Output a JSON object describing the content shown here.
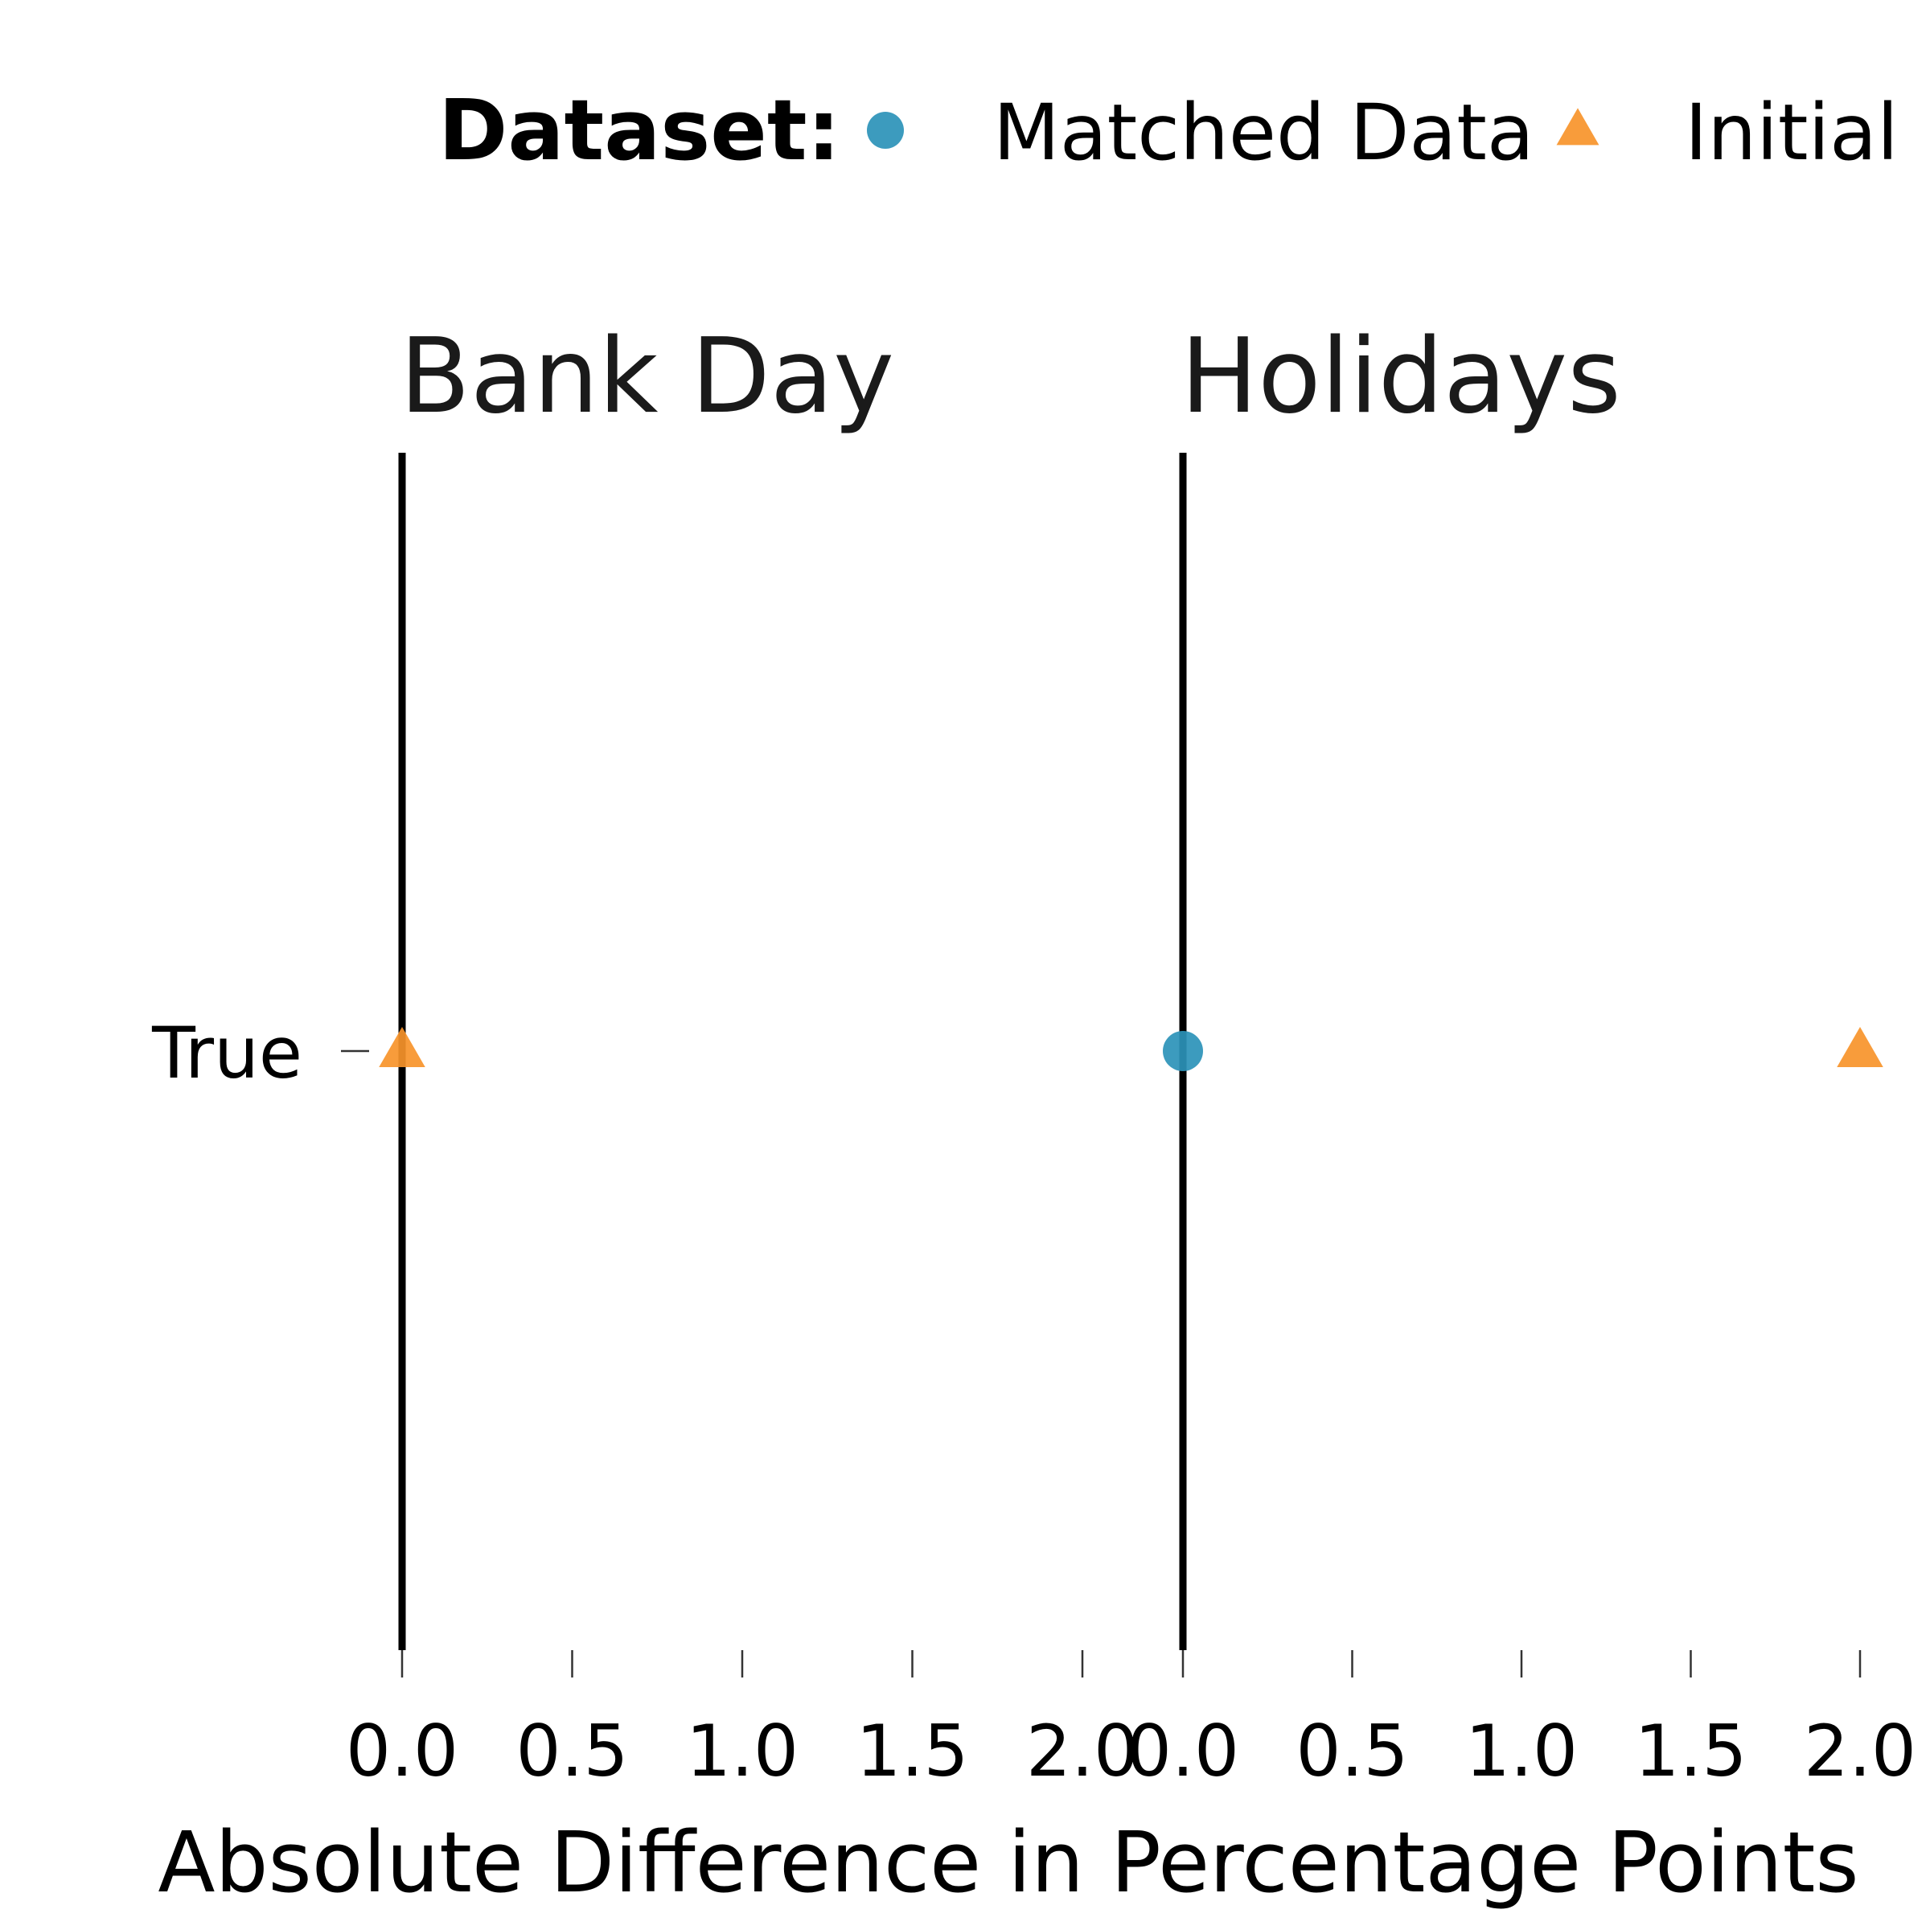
{
  "chart_data": {
    "type": "scatter",
    "legend": {
      "title": "Dataset:",
      "position": "top",
      "entries": [
        {
          "label": "Matched Data",
          "shape": "circle",
          "color": "#2b92b8"
        },
        {
          "label": "Initial Data",
          "shape": "triangle",
          "color": "#f7942a"
        }
      ]
    },
    "xlabel": "Absolute Difference in Percentage Points",
    "xlim": [
      0.0,
      2.0
    ],
    "xticks": [
      "0.0",
      "0.5",
      "1.0",
      "1.5",
      "2.0"
    ],
    "ycategories": [
      "True"
    ],
    "grid": false,
    "reference_line_x": 0,
    "facets": [
      {
        "title": "Bank Day",
        "series": [
          {
            "name": "Initial Data",
            "points": [
              {
                "x": 0.0,
                "y": "True"
              }
            ]
          }
        ]
      },
      {
        "title": "Holidays",
        "series": [
          {
            "name": "Matched Data",
            "points": [
              {
                "x": 0.0,
                "y": "True"
              }
            ]
          },
          {
            "name": "Initial Data",
            "points": [
              {
                "x": 2.0,
                "y": "True"
              }
            ]
          }
        ]
      }
    ]
  }
}
